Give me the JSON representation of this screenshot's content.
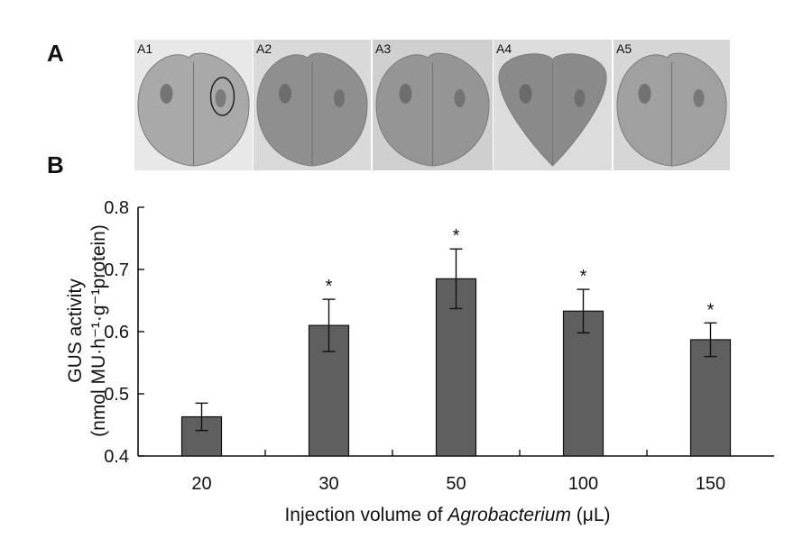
{
  "panel_a": {
    "letter": "A",
    "photos": [
      {
        "label": "A1",
        "bg": "#e8e8e8",
        "leaf": "#a9a9a9"
      },
      {
        "label": "A2",
        "bg": "#d9d9d9",
        "leaf": "#8f8f8f"
      },
      {
        "label": "A3",
        "bg": "#cfcfcf",
        "leaf": "#959595"
      },
      {
        "label": "A4",
        "bg": "#dcdcdc",
        "leaf": "#8a8a8a"
      },
      {
        "label": "A5",
        "bg": "#d6d6d6",
        "leaf": "#a0a0a0"
      }
    ]
  },
  "panel_b": {
    "letter": "B"
  },
  "chart_data": {
    "type": "bar",
    "categories": [
      "20",
      "30",
      "50",
      "100",
      "150"
    ],
    "values": [
      0.463,
      0.61,
      0.685,
      0.633,
      0.587
    ],
    "errors": [
      0.022,
      0.042,
      0.048,
      0.035,
      0.027
    ],
    "significance": [
      "",
      "*",
      "*",
      "*",
      "*"
    ],
    "ylabel_line1": "GUS activity",
    "ylabel_line2": "(nmol MU·h⁻¹·g⁻¹protein)",
    "xlabel_prefix": "Injection volume of ",
    "xlabel_italic": "Agrobacterium",
    "xlabel_suffix": " (μL)",
    "ylim": [
      0.4,
      0.8
    ],
    "yticks": [
      0.4,
      0.5,
      0.6,
      0.7,
      0.8
    ],
    "ytick_labels": [
      "0.4",
      "0.5",
      "0.6",
      "0.7",
      "0.8"
    ],
    "bar_color": "#5f5f5f",
    "grid": false
  }
}
